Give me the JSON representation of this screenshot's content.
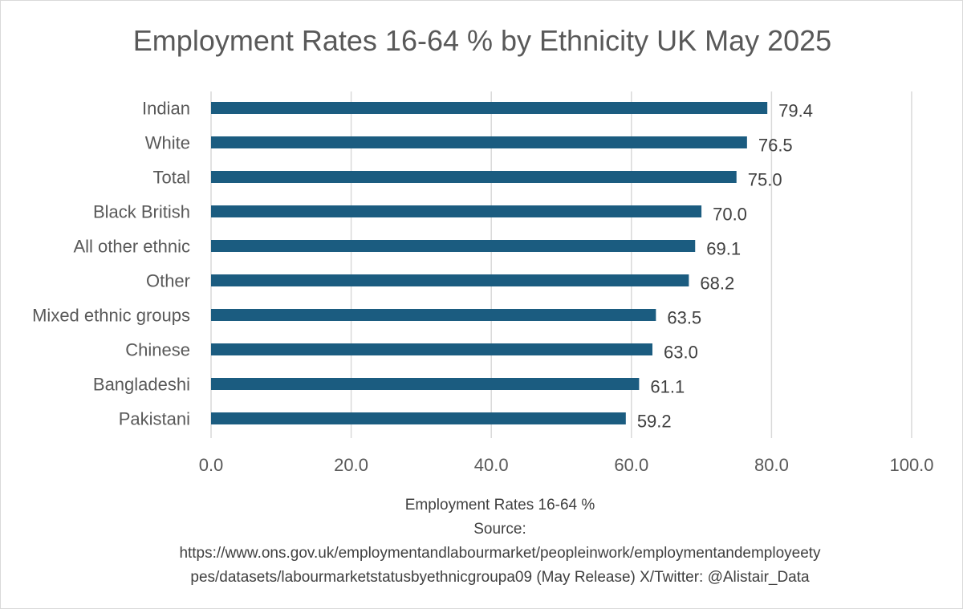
{
  "chart_data": {
    "type": "bar",
    "orientation": "horizontal",
    "title": "Employment Rates 16-64 % by Ethnicity UK May 2025",
    "categories": [
      "Indian",
      "White",
      "Total",
      "Black British",
      "All other ethnic ",
      "Other",
      "Mixed ethnic groups",
      "Chinese",
      "Bangladeshi",
      "Pakistani"
    ],
    "values": [
      79.4,
      76.5,
      75.0,
      70.0,
      69.1,
      68.2,
      63.5,
      63.0,
      61.1,
      59.2
    ],
    "xlim": [
      0,
      100
    ],
    "xticks": [
      0,
      20,
      40,
      60,
      80,
      100
    ],
    "tick_format_decimals": 1,
    "grid": true,
    "bar_color": "#1b5c80",
    "xlabel_lines": [
      "Employment Rates 16-64 %",
      "Source:",
      "https://www.ons.gov.uk/employmentandlabourmarket/peopleinwork/employmentandemployeety",
      "pes/datasets/labourmarketstatusbyethnicgroupa09 (May Release) X/Twitter: @Alistair_Data"
    ]
  }
}
